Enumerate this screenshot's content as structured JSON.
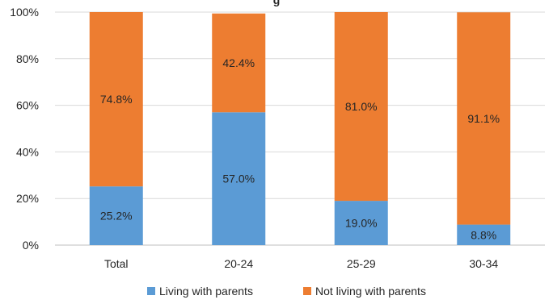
{
  "chart_data": {
    "type": "bar",
    "stacked": true,
    "title": "g",
    "title_note": "Chart title is clipped at the top edge; only partially visible.",
    "categories": [
      "Total",
      "20-24",
      "25-29",
      "30-34"
    ],
    "series": [
      {
        "name": "Living with parents",
        "color": "#5B9BD5",
        "values": [
          25.2,
          57.0,
          19.0,
          8.8
        ],
        "labels": [
          "25.2%",
          "57.0%",
          "19.0%",
          "8.8%"
        ]
      },
      {
        "name": "Not living with parents",
        "color": "#ED7D31",
        "values": [
          74.8,
          42.4,
          81.0,
          91.1
        ],
        "labels": [
          "74.8%",
          "42.4%",
          "81.0%",
          "91.1%"
        ]
      }
    ],
    "ylim": [
      0,
      100
    ],
    "yticks": [
      0,
      20,
      40,
      60,
      80,
      100
    ],
    "ytick_labels": [
      "0%",
      "20%",
      "40%",
      "60%",
      "80%",
      "100%"
    ],
    "xlabel": "",
    "ylabel": "",
    "grid": true,
    "legend_position": "bottom"
  }
}
